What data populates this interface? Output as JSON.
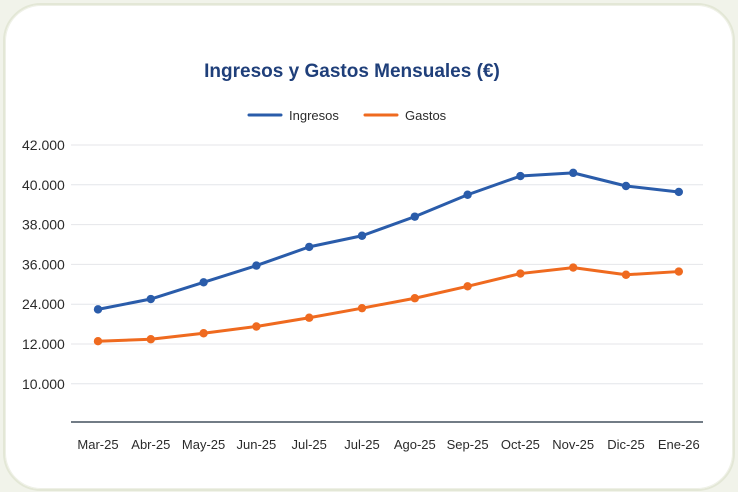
{
  "chart_data": {
    "type": "line",
    "title": "Ingresos y Gastos Mensuales (€)",
    "xlabel": "",
    "ylabel": "",
    "categories": [
      "Mar-25",
      "Abr-25",
      "May-25",
      "Jun-25",
      "Jul-25",
      "Jul-25",
      "Ago-25",
      "Sep-25",
      "Oct-25",
      "Nov-25",
      "Dic-25",
      "Ene-26"
    ],
    "y_tick_labels": [
      "42.000",
      "40.000",
      "38.000",
      "36.000",
      "24.000",
      "12.000",
      "10.000"
    ],
    "y_tick_positions": [
      7,
      6,
      5,
      4,
      3,
      2,
      1
    ],
    "ylim": [
      0,
      7
    ],
    "grid": true,
    "legend_position": "top-center",
    "series": [
      {
        "name": "Ingresos",
        "color": "#2a5caa",
        "values": [
          2.87,
          3.13,
          3.55,
          3.97,
          4.44,
          4.72,
          5.2,
          5.75,
          6.22,
          6.3,
          5.97,
          5.82
        ]
      },
      {
        "name": "Gastos",
        "color": "#ef6a1f",
        "values": [
          2.07,
          2.12,
          2.27,
          2.44,
          2.66,
          2.9,
          3.15,
          3.45,
          3.77,
          3.92,
          3.74,
          3.82
        ]
      }
    ]
  }
}
